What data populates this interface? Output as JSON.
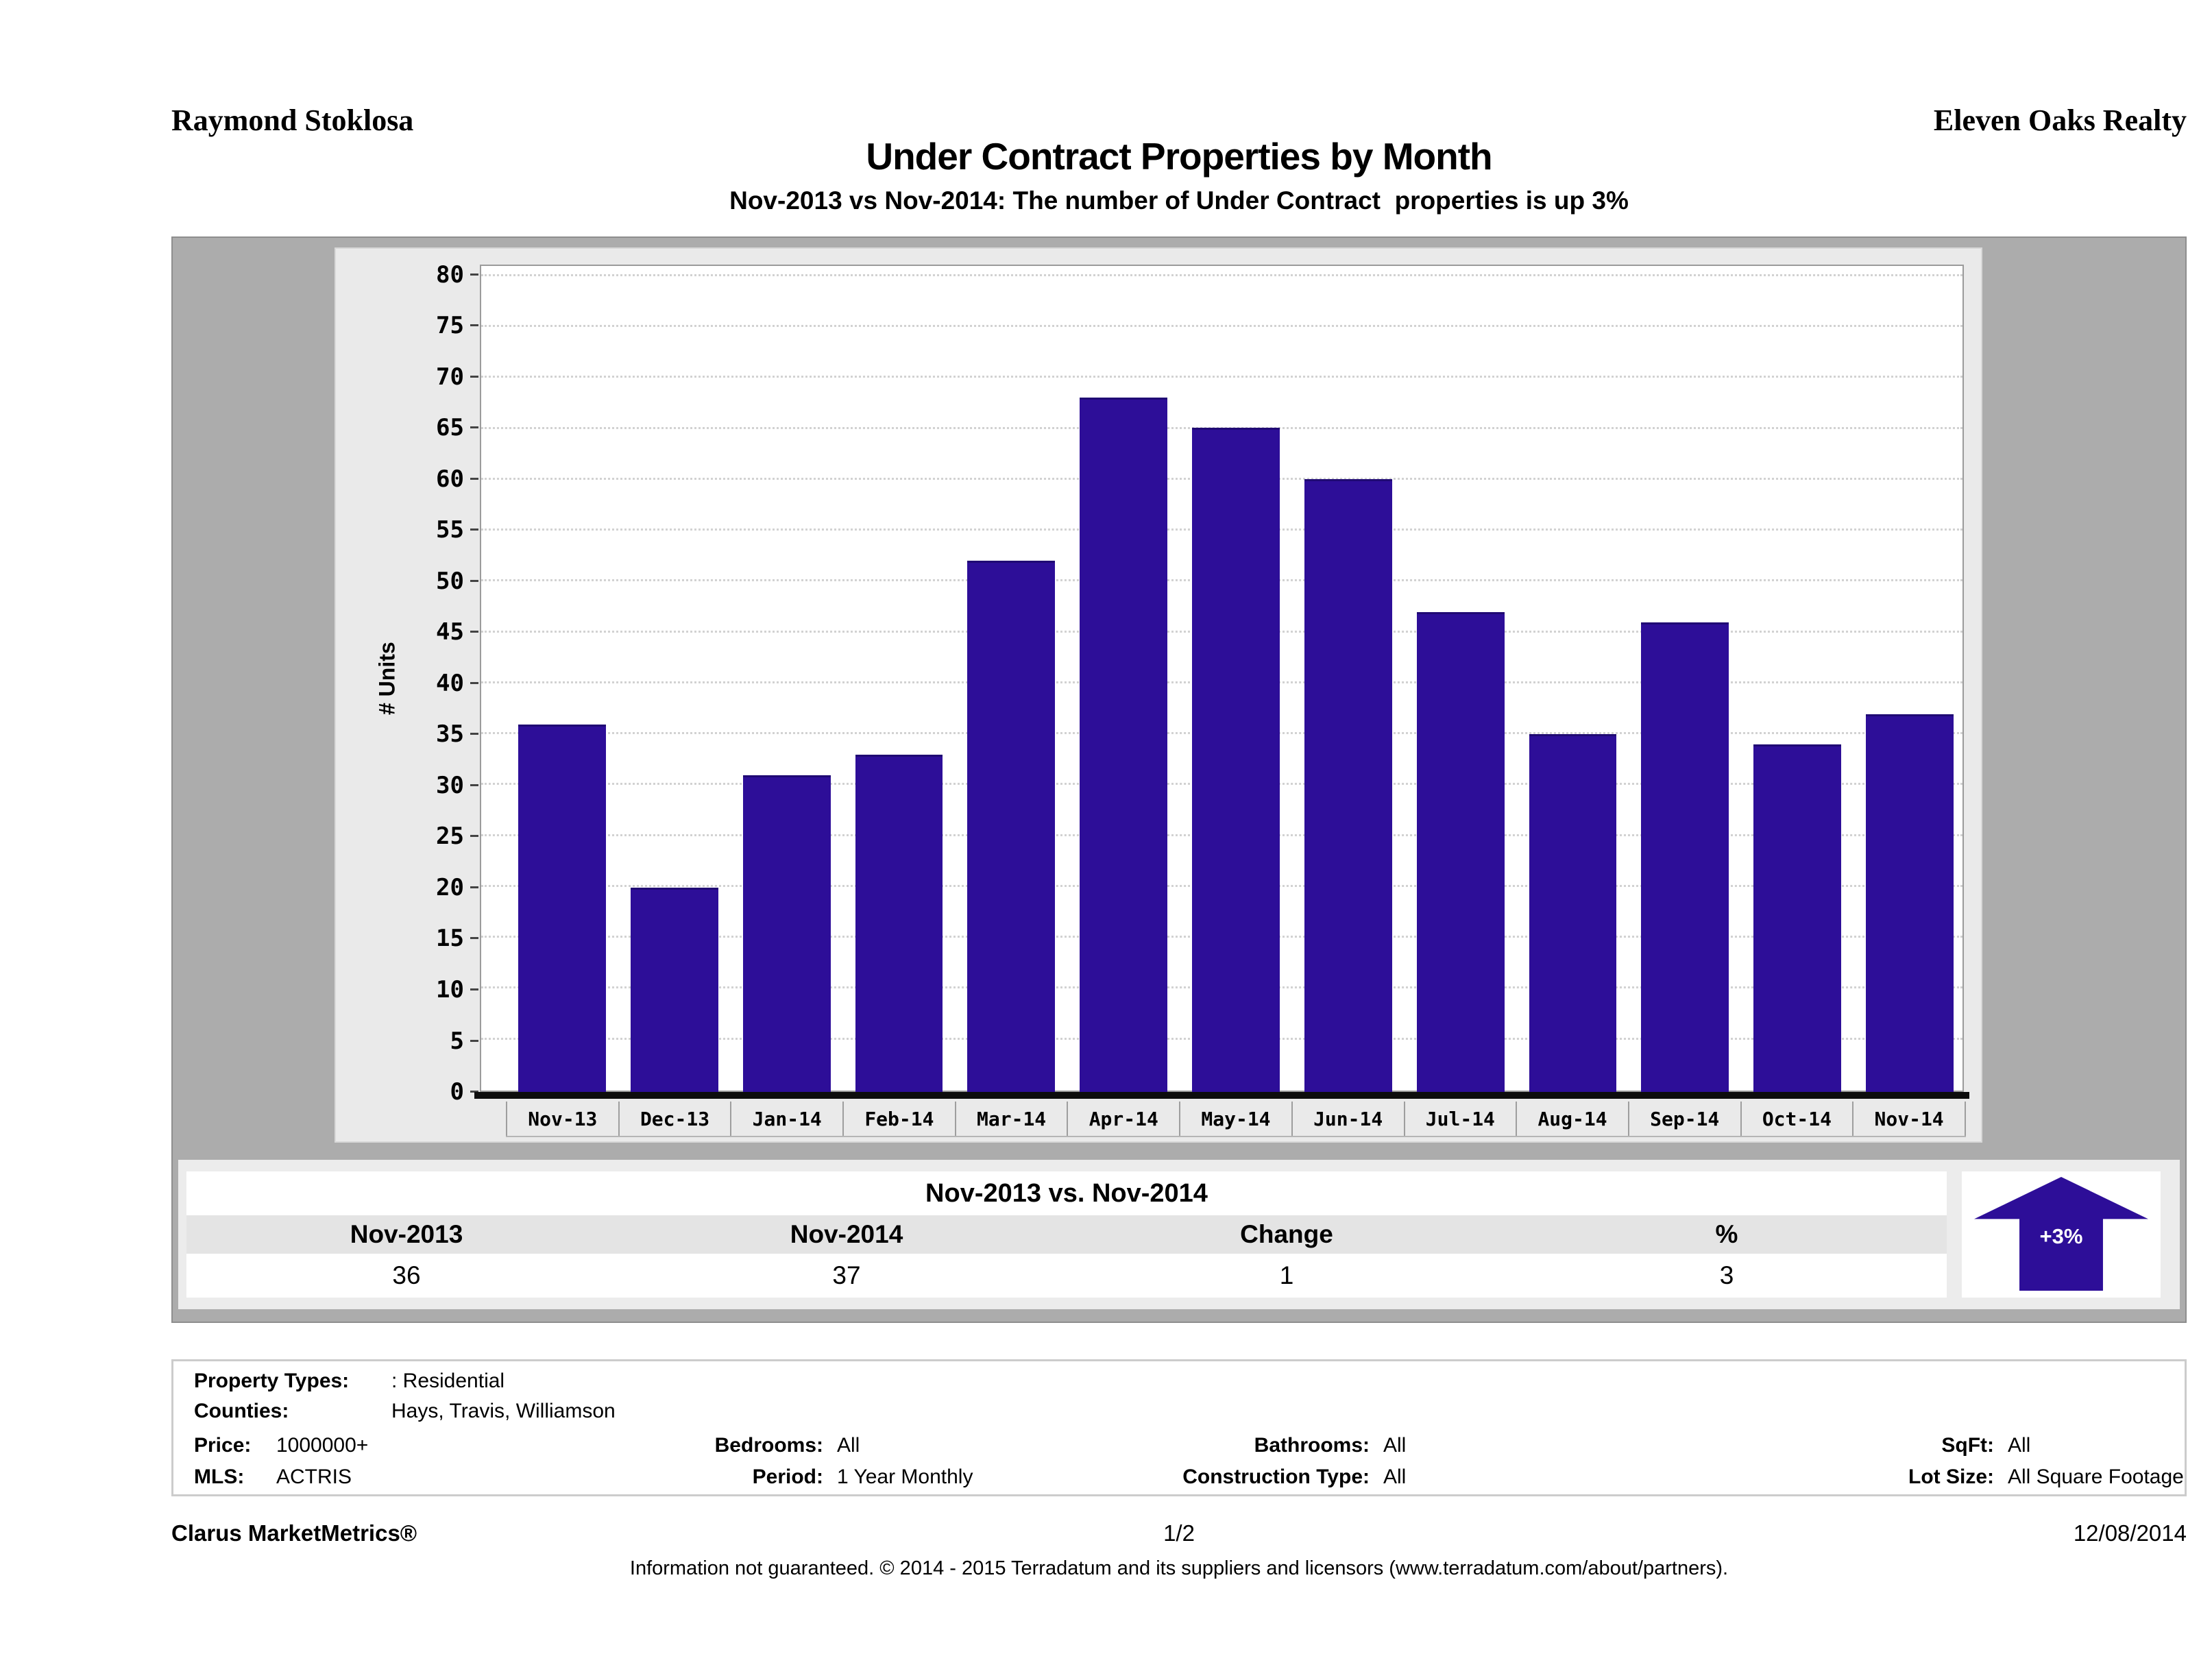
{
  "header": {
    "agent": "Raymond Stoklosa",
    "company": "Eleven Oaks Realty"
  },
  "title": "Under Contract Properties by Month",
  "subtitle": "Nov-2013 vs Nov-2014: The number of Under Contract  properties is up 3%",
  "chart_data": {
    "type": "bar",
    "title": "Under Contract Properties by Month",
    "categories": [
      "Nov-13",
      "Dec-13",
      "Jan-14",
      "Feb-14",
      "Mar-14",
      "Apr-14",
      "May-14",
      "Jun-14",
      "Jul-14",
      "Aug-14",
      "Sep-14",
      "Oct-14",
      "Nov-14"
    ],
    "values": [
      36,
      20,
      31,
      33,
      52,
      68,
      65,
      60,
      47,
      35,
      46,
      34,
      37
    ],
    "xlabel": "",
    "ylabel": "# Units",
    "ylim": [
      0,
      80
    ],
    "ytick_step": 5,
    "grid": "horizontal-dotted",
    "legend": "none",
    "bar_color": "#2d0e98"
  },
  "summary_table": {
    "title": "Nov-2013 vs. Nov-2014",
    "columns": [
      "Nov-2013",
      "Nov-2014",
      "Change",
      "%"
    ],
    "values": [
      "36",
      "37",
      "1",
      "3"
    ]
  },
  "badge": {
    "label": "+3%",
    "direction": "up",
    "color": "#2d0e98"
  },
  "criteria": {
    "property_types_label": "Property Types:",
    "property_types": ": Residential",
    "counties_label": "Counties:",
    "counties": "Hays, Travis, Williamson",
    "price_label": "Price:",
    "price": "1000000+",
    "bedrooms_label": "Bedrooms:",
    "bedrooms": "All",
    "bathrooms_label": "Bathrooms:",
    "bathrooms": "All",
    "sqft_label": "SqFt:",
    "sqft": "All",
    "mls_label": "MLS:",
    "mls": "ACTRIS",
    "period_label": "Period:",
    "period": "1 Year Monthly",
    "construction_label": "Construction Type:",
    "construction": "All",
    "lot_label": "Lot Size:",
    "lot": "All Square Footage"
  },
  "footer": {
    "brand": "Clarus MarketMetrics®",
    "page": "1/2",
    "date": "12/08/2014",
    "disclaimer": "Information not guaranteed. © 2014 - 2015 Terradatum and its suppliers and licensors (www.terradatum.com/about/partners)."
  }
}
